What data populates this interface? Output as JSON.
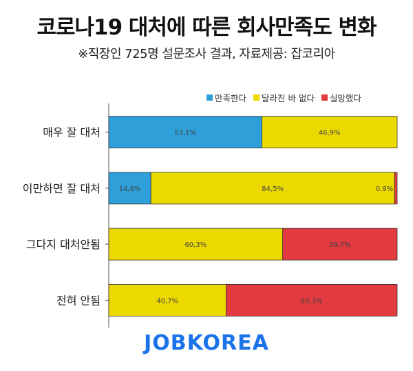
{
  "chart_data": {
    "type": "bar",
    "orientation": "horizontal",
    "stacked": true,
    "title": "코로나19 대처에 따른 회사만족도 변화",
    "subtitle": "※직장인 725명 설문조사 결과, 자료제공: 잡코리아",
    "categories": [
      "매우 잘 대처",
      "이만하면 잘 대처",
      "그다지 대처안됨",
      "전혀 안됨"
    ],
    "series": [
      {
        "name": "만족한다",
        "color": "#2e9fd8",
        "values": [
          53.1,
          14.6,
          0,
          0
        ],
        "labels": [
          "53,1%",
          "14,6%",
          "",
          ""
        ]
      },
      {
        "name": "달라진 바 없다",
        "color": "#ecd900",
        "values": [
          46.9,
          84.5,
          60.3,
          40.7
        ],
        "labels": [
          "46,9%",
          "84,5%",
          "60,3%",
          "40,7%"
        ]
      },
      {
        "name": "실망했다",
        "color": "#e23a3e",
        "values": [
          0,
          0.9,
          39.7,
          59.3
        ],
        "labels": [
          "",
          "0,9%",
          "39,7%",
          "59,3%"
        ]
      }
    ],
    "xlim": [
      0,
      100
    ],
    "legend_position": "top-right",
    "grid": false
  },
  "brand": {
    "logo_text": "JOBKOREA",
    "color": "#1a73e8"
  }
}
